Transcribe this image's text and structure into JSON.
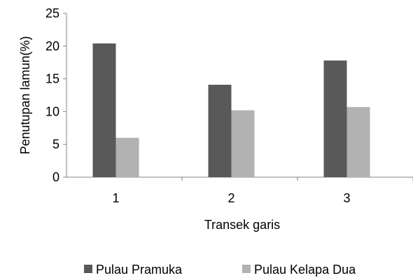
{
  "chart_data": {
    "type": "bar",
    "title": "",
    "xlabel": "Transek garis",
    "ylabel": "Penutupan lamun(%)",
    "categories": [
      "1",
      "2",
      "3"
    ],
    "ylim": [
      0,
      25
    ],
    "yticks": [
      0,
      5,
      10,
      15,
      20,
      25
    ],
    "grid": false,
    "legend_position": "bottom",
    "series": [
      {
        "name": "Pulau Pramuka",
        "values": [
          20.4,
          14.1,
          17.8
        ],
        "color": "#595959"
      },
      {
        "name": "Pulau Kelapa Dua",
        "values": [
          6.0,
          10.2,
          10.7
        ],
        "color": "#b2b2b2"
      }
    ]
  }
}
